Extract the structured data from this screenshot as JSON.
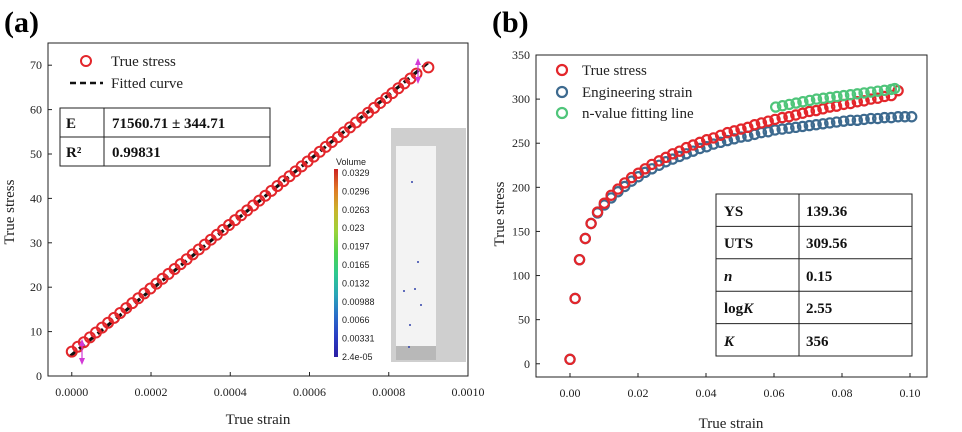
{
  "colors": {
    "true_stress": "#e3262b",
    "engineering": "#3d6a8f",
    "nfit": "#4fc57a",
    "fitted": "#111111",
    "arrow": "#d23ad6"
  },
  "chart_data": [
    {
      "id": "a",
      "panel_label": "(a)",
      "type": "scatter",
      "xlabel": "True strain",
      "ylabel": "True stress",
      "xlim": [
        -6e-05,
        0.001
      ],
      "ylim": [
        0,
        75
      ],
      "xticks": [
        0.0,
        0.0002,
        0.0004,
        0.0006,
        0.0008,
        0.001
      ],
      "xtick_labels": [
        "0.0000",
        "0.0002",
        "0.0004",
        "0.0006",
        "0.0008",
        "0.0010"
      ],
      "yticks": [
        0,
        10,
        20,
        30,
        40,
        50,
        60,
        70
      ],
      "ytick_labels": [
        "0",
        "10",
        "20",
        "30",
        "40",
        "50",
        "60",
        "70"
      ],
      "legend": [
        "True stress",
        "Fitted curve"
      ],
      "table": [
        [
          "E",
          "71560.71 ± 344.71"
        ],
        [
          "R²",
          "0.99831"
        ]
      ],
      "series": [
        {
          "name": "True stress",
          "marker": "open-circle",
          "color_key": "true_stress",
          "x": [
            0.0,
            1.53e-05,
            3.05e-05,
            4.58e-05,
            6.1e-05,
            7.63e-05,
            9.16e-05,
            0.0001068,
            0.0001221,
            0.0001374,
            0.0001526,
            0.0001679,
            0.0001831,
            0.0001984,
            0.0002137,
            0.0002289,
            0.0002442,
            0.0002595,
            0.0002747,
            0.00029,
            0.0003053,
            0.0003205,
            0.0003358,
            0.000351,
            0.0003663,
            0.0003816,
            0.0003968,
            0.0004121,
            0.0004274,
            0.0004426,
            0.0004579,
            0.0004731,
            0.0004884,
            0.0005037,
            0.0005189,
            0.0005342,
            0.0005495,
            0.0005647,
            0.00058,
            0.0005952,
            0.0006105,
            0.0006258,
            0.000641,
            0.0006563,
            0.0006716,
            0.0006868,
            0.0007021,
            0.0007173,
            0.0007326,
            0.0007479,
            0.0007631,
            0.0007784,
            0.0007937,
            0.0008089,
            0.0008242,
            0.0008394,
            0.0008547,
            0.00087,
            0.0009
          ],
          "y": [
            5.5,
            6.6,
            7.6,
            8.7,
            9.8,
            10.9,
            12.0,
            13.1,
            14.2,
            15.3,
            16.4,
            17.5,
            18.6,
            19.7,
            20.8,
            21.9,
            23.0,
            24.1,
            25.2,
            26.3,
            27.4,
            28.5,
            29.6,
            30.7,
            31.8,
            32.9,
            34.0,
            35.1,
            36.2,
            37.3,
            38.4,
            39.5,
            40.6,
            41.7,
            42.8,
            43.9,
            45.0,
            46.1,
            47.2,
            48.3,
            49.4,
            50.5,
            51.6,
            52.7,
            53.8,
            54.9,
            56.0,
            57.1,
            58.2,
            59.3,
            60.4,
            61.5,
            62.6,
            63.7,
            64.8,
            65.9,
            67.0,
            68.1,
            69.5
          ]
        },
        {
          "name": "Fitted curve",
          "marker": "dashed-line",
          "color_key": "fitted",
          "x": [
            -5e-06,
            0.000905
          ],
          "y": [
            4.4,
            71.0
          ]
        }
      ],
      "colorbar": {
        "title": "Volume",
        "labels": [
          "0.0329",
          "0.0296",
          "0.0263",
          "0.023",
          "0.0197",
          "0.0165",
          "0.0132",
          "0.00988",
          "0.0066",
          "0.00331",
          "2.4e-05"
        ],
        "gradient": [
          "#cc2222",
          "#e07b26",
          "#c9b52c",
          "#9ad33a",
          "#4fd34e",
          "#2ec98f",
          "#2aa6b8",
          "#2a6fc9",
          "#2a3ec4",
          "#2b1fa4"
        ]
      }
    },
    {
      "id": "b",
      "panel_label": "(b)",
      "type": "scatter",
      "xlabel": "True strain",
      "ylabel": "True stress",
      "xlim": [
        -0.01,
        0.105
      ],
      "ylim": [
        -15,
        350
      ],
      "xticks": [
        0.0,
        0.02,
        0.04,
        0.06,
        0.08,
        0.1
      ],
      "xtick_labels": [
        "0.00",
        "0.02",
        "0.04",
        "0.06",
        "0.08",
        "0.10"
      ],
      "yticks": [
        0,
        50,
        100,
        150,
        200,
        250,
        300,
        350
      ],
      "ytick_labels": [
        "0",
        "50",
        "100",
        "150",
        "200",
        "250",
        "300",
        "350"
      ],
      "legend": [
        "True stress",
        "Engineering strain",
        "n-value fitting line"
      ],
      "table": [
        [
          "YS",
          "139.36"
        ],
        [
          "UTS",
          "309.56"
        ],
        [
          "n",
          "0.15"
        ],
        [
          "logK",
          "2.55"
        ],
        [
          "K",
          "356"
        ]
      ],
      "series": [
        {
          "name": "True stress",
          "marker": "open-circle",
          "color_key": "true_stress",
          "x": [
            0.0,
            0.0015,
            0.0028,
            0.0045,
            0.0062,
            0.0081,
            0.0101,
            0.0121,
            0.0141,
            0.0161,
            0.0181,
            0.0201,
            0.0221,
            0.0241,
            0.0262,
            0.0282,
            0.0302,
            0.0322,
            0.0342,
            0.0362,
            0.0382,
            0.0402,
            0.0422,
            0.0443,
            0.0463,
            0.0483,
            0.0503,
            0.0523,
            0.0543,
            0.0563,
            0.0583,
            0.0603,
            0.0624,
            0.0644,
            0.0664,
            0.0684,
            0.0704,
            0.0724,
            0.0744,
            0.0764,
            0.0784,
            0.0805,
            0.0825,
            0.0845,
            0.0865,
            0.0885,
            0.0905,
            0.0925,
            0.0945,
            0.0965
          ],
          "y": [
            5,
            74,
            118,
            142,
            159,
            172,
            182,
            191,
            198,
            205,
            211,
            216,
            221,
            226,
            230,
            234,
            238,
            241,
            245,
            248,
            251,
            254,
            256,
            259,
            262,
            264,
            266,
            268,
            271,
            273,
            275,
            277,
            279,
            280,
            282,
            284,
            286,
            287,
            289,
            291,
            292,
            294,
            295,
            297,
            298,
            300,
            301,
            303,
            304,
            309.56
          ]
        },
        {
          "name": "Engineering strain",
          "marker": "open-circle",
          "color_key": "engineering",
          "x": [
            0.0,
            0.0015,
            0.0028,
            0.0045,
            0.0062,
            0.0081,
            0.0101,
            0.0121,
            0.0141,
            0.0161,
            0.0181,
            0.0201,
            0.0221,
            0.0241,
            0.0262,
            0.0282,
            0.0302,
            0.0322,
            0.0342,
            0.0362,
            0.0382,
            0.0402,
            0.0422,
            0.0443,
            0.0463,
            0.0483,
            0.0503,
            0.0523,
            0.0543,
            0.0563,
            0.0583,
            0.0603,
            0.0624,
            0.0644,
            0.0664,
            0.0684,
            0.0704,
            0.0724,
            0.0744,
            0.0764,
            0.0784,
            0.0805,
            0.0825,
            0.0845,
            0.0865,
            0.0885,
            0.0905,
            0.0925,
            0.0945,
            0.0965,
            0.0985,
            0.1005
          ],
          "y": [
            5,
            74,
            118,
            142,
            159,
            171,
            180,
            188,
            195,
            201,
            207,
            212,
            217,
            221,
            225,
            229,
            232,
            235,
            238,
            241,
            244,
            246,
            249,
            251,
            253,
            255,
            257,
            258,
            260,
            262,
            263,
            265,
            266,
            267,
            268,
            269,
            270,
            271,
            272,
            273,
            274,
            275,
            276,
            276,
            277,
            278,
            278,
            279,
            279,
            280,
            280,
            280
          ]
        },
        {
          "name": "n-value fitting line",
          "marker": "open-circle",
          "color_key": "nfit",
          "x": [
            0.0605,
            0.0625,
            0.0645,
            0.0665,
            0.0685,
            0.0705,
            0.0725,
            0.0745,
            0.0765,
            0.0785,
            0.0805,
            0.0825,
            0.0845,
            0.0865,
            0.0885,
            0.0905,
            0.0925,
            0.0945,
            0.0955
          ],
          "y": [
            291,
            292.5,
            294,
            295.5,
            297,
            298.5,
            300,
            301,
            302,
            303,
            304,
            305,
            306,
            307,
            308,
            309,
            310,
            311,
            312
          ]
        }
      ]
    }
  ]
}
